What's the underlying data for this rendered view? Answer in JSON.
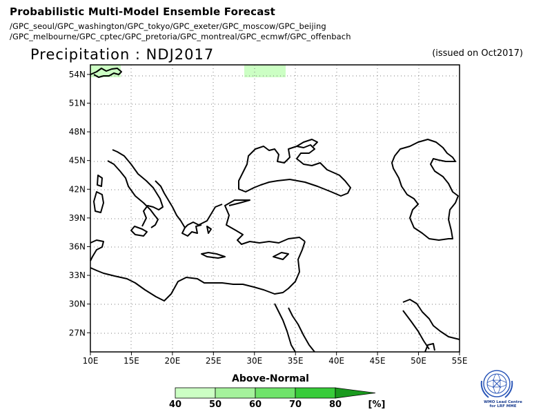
{
  "header": {
    "title": "Probabilistic Multi-Model Ensemble Forecast",
    "centres_line1": "/GPC_seoul/GPC_washington/GPC_tokyo/GPC_exeter/GPC_moscow/GPC_beijing",
    "centres_line2": "/GPC_melbourne/GPC_cptec/GPC_pretoria/GPC_montreal/GPC_ecmwf/GPC_offenbach",
    "subtitle": "Precipitation : NDJ2017",
    "issued": "(issued on Oct2017)"
  },
  "map": {
    "region": "Mediterranean and Black Sea",
    "lon_range": [
      10,
      55
    ],
    "lat_range": [
      25,
      55
    ],
    "lat_ticks": [
      "54N",
      "51N",
      "48N",
      "45N",
      "42N",
      "39N",
      "36N",
      "33N",
      "30N",
      "27N"
    ],
    "lon_ticks": [
      "10E",
      "15E",
      "20E",
      "25E",
      "30E",
      "35E",
      "40E",
      "45E",
      "50E",
      "55E"
    ],
    "gridlines": "dotted",
    "shaded_areas": [
      {
        "category": "Above-Normal",
        "probability": "40-50",
        "lon": [
          10,
          13.7
        ],
        "lat": [
          53.3,
          55
        ]
      },
      {
        "category": "Above-Normal",
        "probability": "40-50",
        "lon": [
          28.8,
          33.5
        ],
        "lat": [
          53.3,
          55
        ]
      }
    ]
  },
  "legend": {
    "title": "Above-Normal",
    "labels": [
      "40",
      "50",
      "60",
      "70",
      "80"
    ],
    "unit": "[%]",
    "colors": [
      "#ccffc4",
      "#a5f29c",
      "#6fe36a",
      "#38cc3a",
      "#1a9a1e"
    ]
  },
  "logo": {
    "name": "wmo-emblem-icon",
    "text": "WMO Lead Centre for LRF MME"
  }
}
